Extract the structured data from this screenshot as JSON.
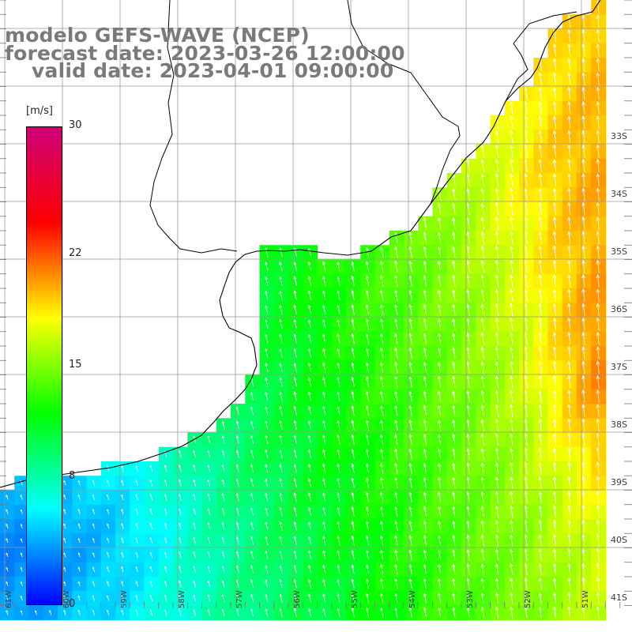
{
  "title": {
    "line1": "modelo GEFS-WAVE (NCEP)",
    "line2": "forecast date: 2023-03-26 12:00:00",
    "line3": "valid date: 2023-04-01 09:00:00"
  },
  "legend": {
    "unit": "[m/s]",
    "ticks": [
      "30",
      "22",
      "15",
      "8",
      "0"
    ],
    "tick_values": [
      30,
      22,
      15,
      8,
      0
    ],
    "range": [
      0,
      30
    ],
    "colors": [
      "#0000ff",
      "#00ffff",
      "#00ff00",
      "#ffff00",
      "#ff0000",
      "#cc0077"
    ]
  },
  "lat_labels": [
    "33S",
    "34S",
    "35S",
    "36S",
    "37S",
    "38S",
    "39S",
    "40S",
    "41S"
  ],
  "lon_labels": [
    "61W",
    "60W",
    "59W",
    "58W",
    "57W",
    "56W",
    "55W",
    "54W",
    "53W",
    "52W",
    "51W"
  ],
  "map": {
    "variable": "wind speed",
    "colors": {
      "land": "#ffffff",
      "grid": "#999999",
      "coast": "#000000",
      "arrows": "#ffffff"
    }
  }
}
